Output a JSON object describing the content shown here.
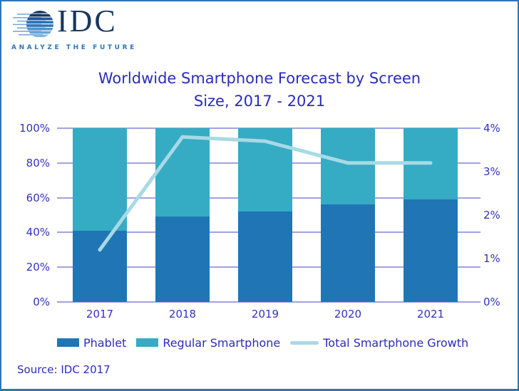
{
  "logo": {
    "brand": "IDC",
    "tagline": "ANALYZE THE FUTURE",
    "brand_color": "#17375E",
    "tagline_color": "#2E75B6"
  },
  "title": {
    "line1": "Worldwide Smartphone Forecast by Screen",
    "line2": "Size, 2017 - 2021",
    "color": "#2B2BBB"
  },
  "source": {
    "text": "Source: IDC 2017"
  },
  "page": {
    "border_color": "#2E75B6",
    "background": "#FFFFFF"
  },
  "chart_data": {
    "type": "bar",
    "subtype": "stacked-percent-bars-with-line-overlay",
    "categories": [
      "2017",
      "2018",
      "2019",
      "2020",
      "2021"
    ],
    "series": [
      {
        "name": "Phablet",
        "kind": "bar",
        "stack": true,
        "axis": "left",
        "color": "#2076B5",
        "values": [
          41,
          49,
          52,
          56,
          59
        ]
      },
      {
        "name": "Regular Smartphone",
        "kind": "bar",
        "stack": true,
        "axis": "left",
        "color": "#35ACC3",
        "values": [
          59,
          51,
          48,
          44,
          41
        ]
      },
      {
        "name": "Total Smartphone Growth",
        "kind": "line",
        "axis": "right",
        "color": "#A8D9E6",
        "values": [
          1.2,
          3.8,
          3.7,
          3.2,
          3.2
        ]
      }
    ],
    "left_axis": {
      "min": 0,
      "max": 100,
      "ticks": [
        "0%",
        "20%",
        "40%",
        "60%",
        "80%",
        "100%"
      ]
    },
    "right_axis": {
      "min": 0,
      "max": 4,
      "ticks": [
        "0%",
        "1%",
        "2%",
        "3%",
        "4%"
      ]
    },
    "grid": {
      "on": true,
      "color": "#A2A2E2",
      "horizontal_only": true
    },
    "text_color": "#3232BE",
    "legend": {
      "position": "bottom"
    }
  }
}
